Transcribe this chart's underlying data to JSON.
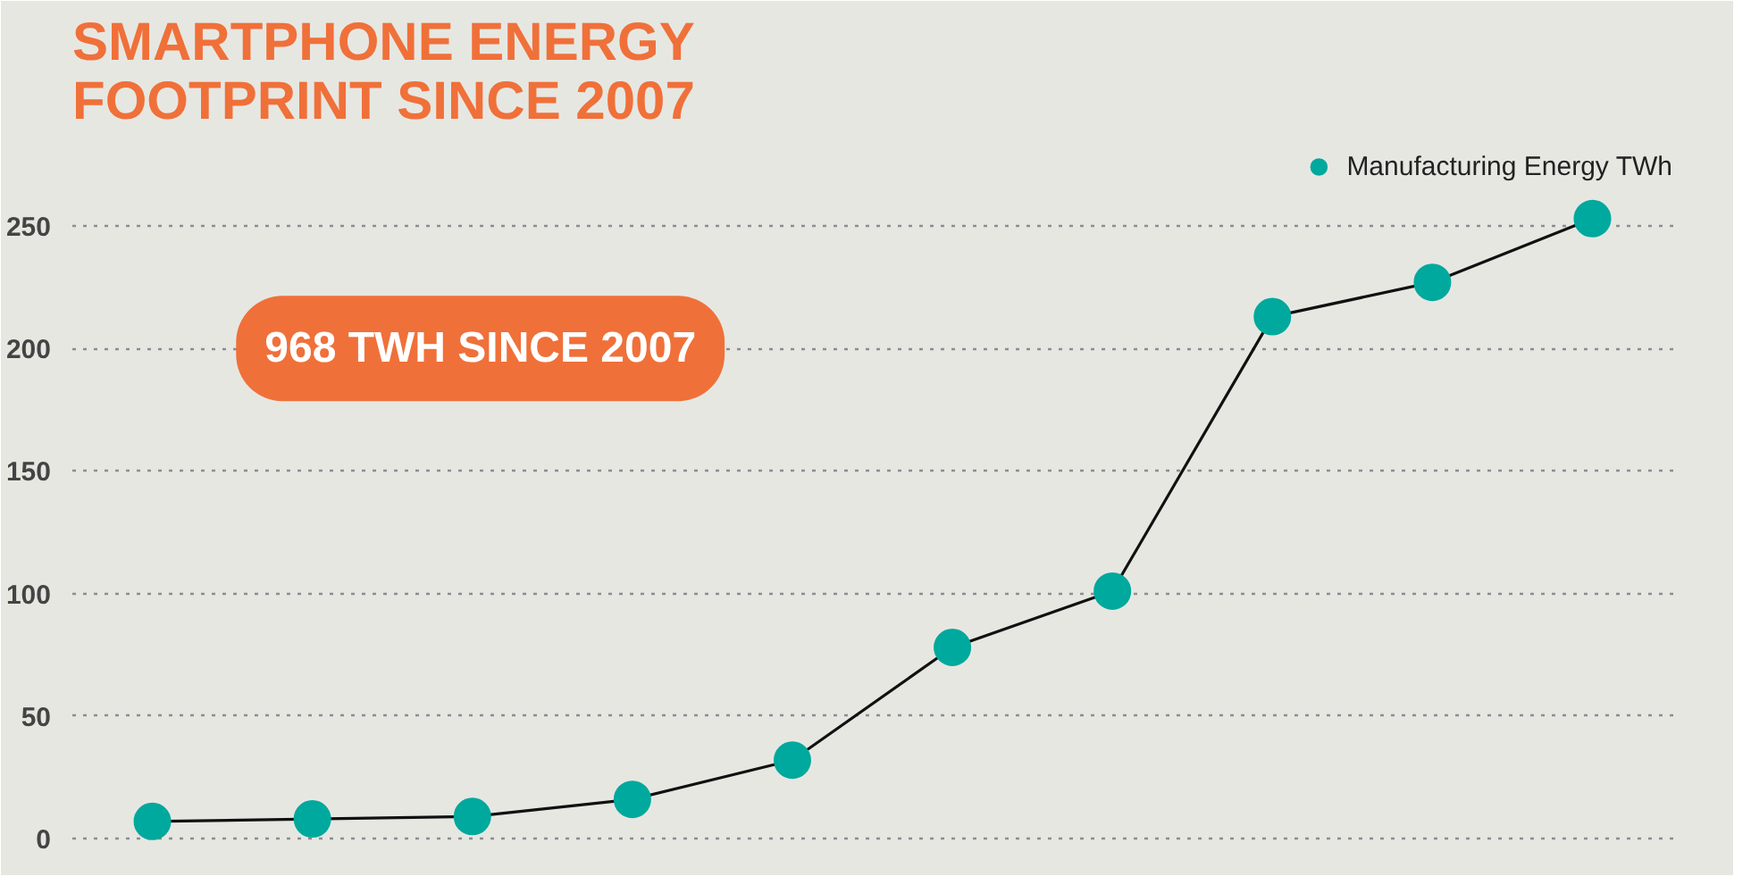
{
  "chart_data": {
    "type": "line",
    "title": "SMARTPHONE ENERGY\nFOOTPRINT SINCE 2007",
    "categories": [
      null,
      null,
      null,
      null,
      null,
      null,
      null,
      null,
      null,
      null
    ],
    "series": [
      {
        "name": "Manufacturing Energy TWh",
        "color": "#00a99d",
        "values": [
          7,
          8,
          9,
          16,
          32,
          78,
          101,
          213,
          227,
          253
        ]
      }
    ],
    "ylim": [
      -8,
      285
    ],
    "yticks": [
      0,
      50,
      100,
      150,
      200,
      250
    ],
    "grid": "y",
    "legend": "top right",
    "marker": "circle",
    "line_style": "solid",
    "tick_labels": "y",
    "annotations": [
      "968 TWH SINCE 2007"
    ]
  }
}
